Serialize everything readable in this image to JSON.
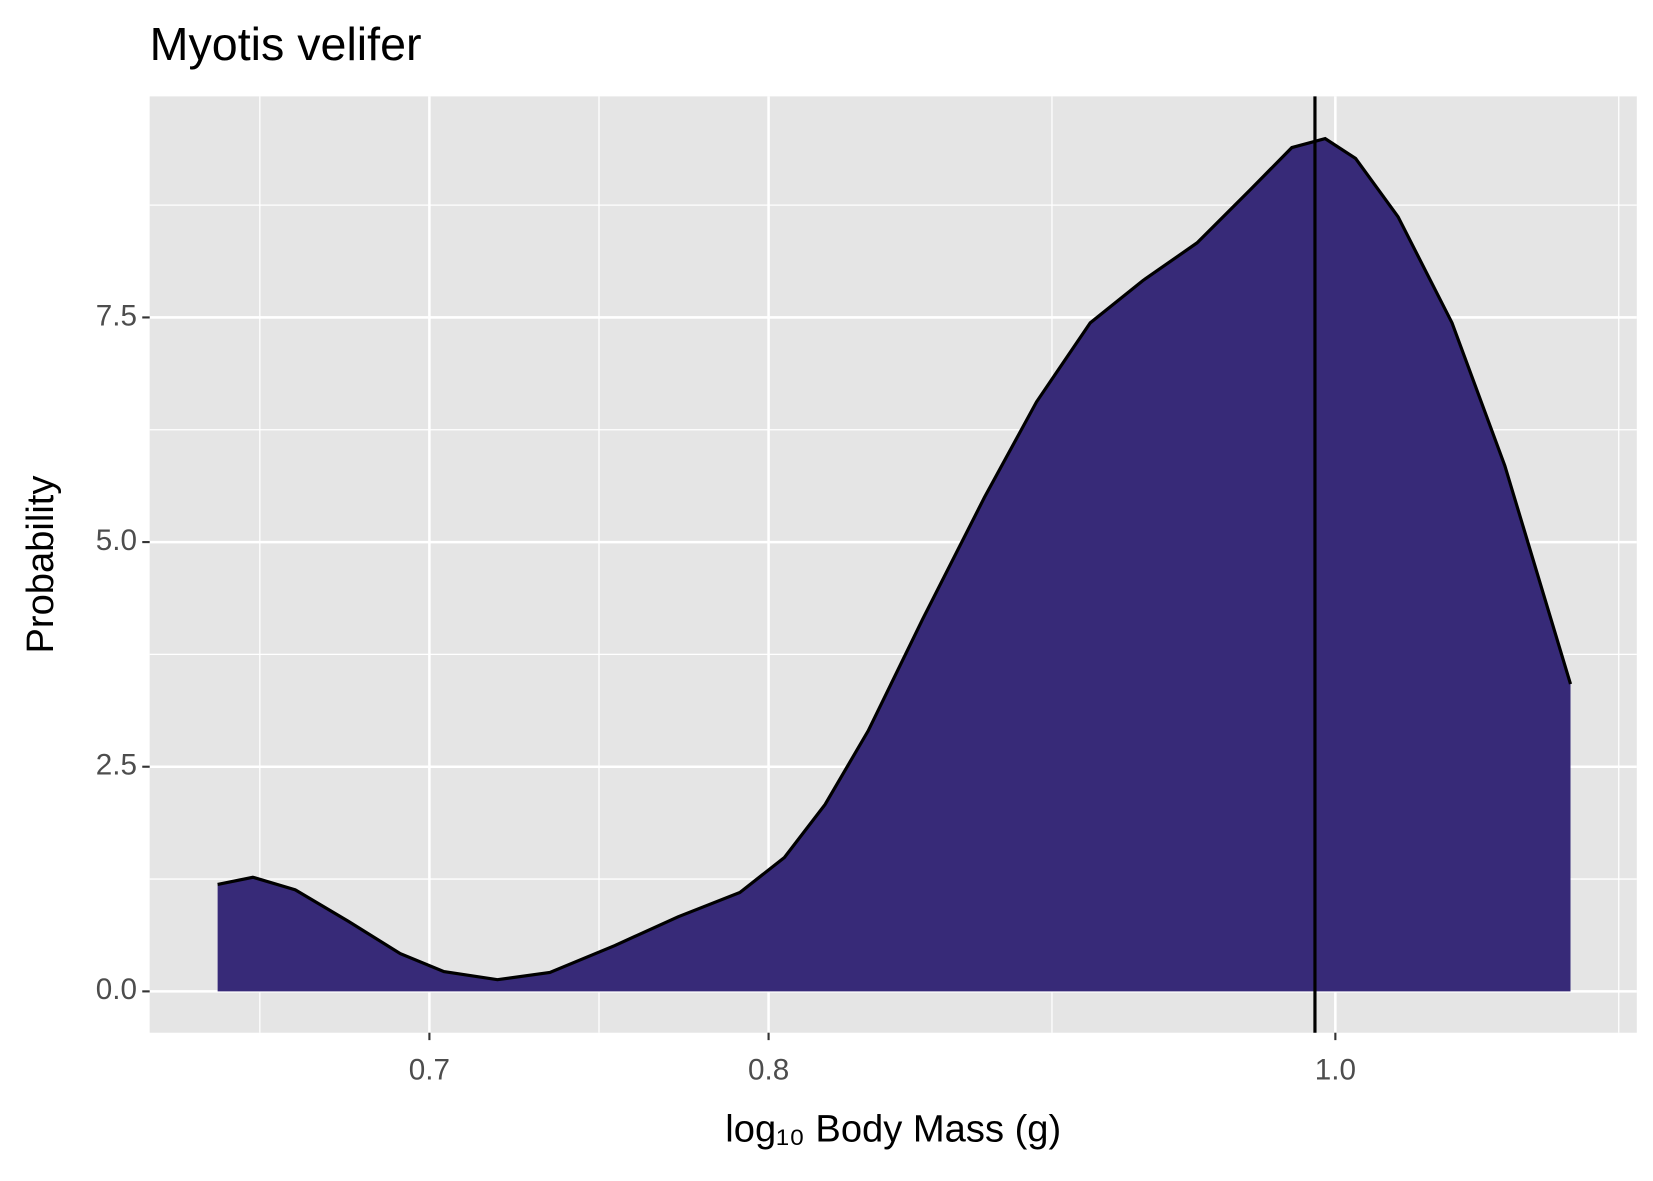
{
  "chart_data": {
    "type": "area",
    "title": "Myotis velifer",
    "x_label": "log₁₀ Body Mass (g)",
    "y_label": "Probability",
    "log_x": true,
    "grid": true,
    "color": "#372a78",
    "line_color": "#000000",
    "xlim": [
      0.627,
      1.126
    ],
    "ylim": [
      -0.46,
      9.96
    ],
    "xticks": [
      0.7,
      0.8,
      {
        "value": 1.0,
        "label": "1.0"
      }
    ],
    "yticks": [
      {
        "value": 0,
        "label": "0.0"
      },
      2.5,
      {
        "value": 5,
        "label": "5.0"
      },
      7.5
    ],
    "reference_x": 0.992,
    "x": [
      0.644,
      0.653,
      0.664,
      0.678,
      0.692,
      0.704,
      0.719,
      0.734,
      0.753,
      0.772,
      0.791,
      0.805,
      0.818,
      0.832,
      0.85,
      0.871,
      0.889,
      0.908,
      0.927,
      0.947,
      0.967,
      0.983,
      0.996,
      1.008,
      1.025,
      1.047,
      1.069,
      1.097
    ],
    "values": [
      1.19,
      1.27,
      1.13,
      0.78,
      0.42,
      0.22,
      0.13,
      0.21,
      0.51,
      0.83,
      1.1,
      1.49,
      2.08,
      2.9,
      4.14,
      5.5,
      6.56,
      7.44,
      7.91,
      8.33,
      8.92,
      9.39,
      9.49,
      9.27,
      8.62,
      7.44,
      5.85,
      3.42
    ]
  }
}
